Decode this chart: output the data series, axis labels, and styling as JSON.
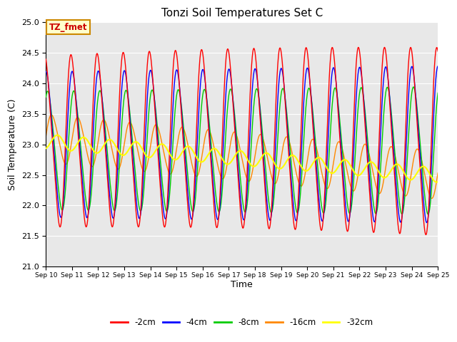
{
  "title": "Tonzi Soil Temperatures Set C",
  "xlabel": "Time",
  "ylabel": "Soil Temperature (C)",
  "ylim": [
    21.0,
    25.0
  ],
  "yticks": [
    21.0,
    21.5,
    22.0,
    22.5,
    23.0,
    23.5,
    24.0,
    24.5,
    25.0
  ],
  "xlim": [
    0,
    360
  ],
  "xtick_positions": [
    0,
    24,
    48,
    72,
    96,
    120,
    144,
    168,
    192,
    216,
    240,
    264,
    288,
    312,
    336,
    360
  ],
  "xtick_labels": [
    "Sep 10",
    "Sep 11",
    "Sep 12",
    "Sep 13",
    "Sep 14",
    "Sep 15",
    "Sep 16",
    "Sep 17",
    "Sep 18",
    "Sep 19",
    "Sep 20",
    "Sep 21",
    "Sep 22",
    "Sep 23",
    "Sep 24",
    "Sep 25"
  ],
  "series_labels": [
    "-2cm",
    "-4cm",
    "-8cm",
    "-16cm",
    "-32cm"
  ],
  "series_colors": [
    "#ff0000",
    "#0000ff",
    "#00cc00",
    "#ff8800",
    "#ffff00"
  ],
  "background_color": "#e8e8e8",
  "figure_color": "#ffffff",
  "annotation_text": "TZ_fmet",
  "annotation_color": "#cc0000",
  "annotation_bg": "#ffffcc",
  "annotation_border": "#cc8800"
}
